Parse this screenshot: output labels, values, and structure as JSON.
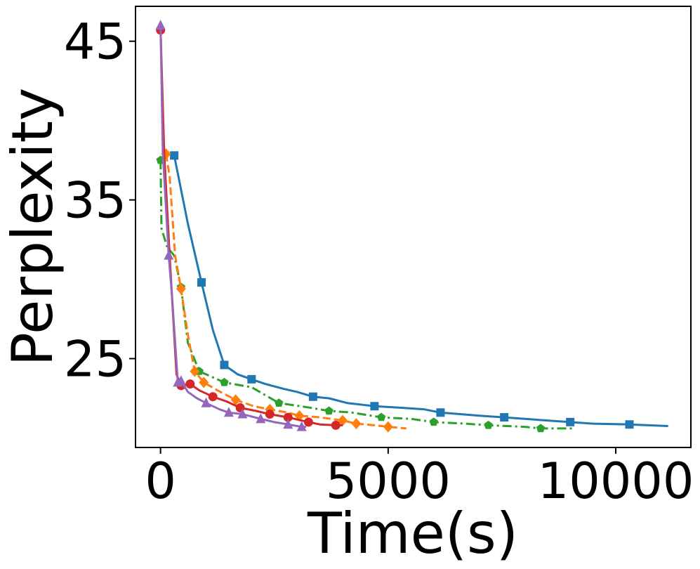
{
  "chart_data": {
    "type": "line",
    "title": "",
    "xlabel": "Time(s)",
    "ylabel": "Perplexity",
    "xlim": [
      -550,
      11650
    ],
    "ylim": [
      19.4,
      47.2
    ],
    "xticks": [
      0,
      5000,
      10000
    ],
    "xtick_labels": [
      "0",
      "5000",
      "10000"
    ],
    "yticks": [
      25,
      35,
      45
    ],
    "ytick_labels": [
      "25",
      "35",
      "45"
    ],
    "grid": false,
    "legend": "none",
    "series": [
      {
        "color": "#1f77b4",
        "dash": "solid",
        "marker": "square",
        "x": [
          300,
          600,
          900,
          1150,
          1400,
          1700,
          2000,
          2300,
          2700,
          3000,
          3350,
          3700,
          4100,
          4700,
          5300,
          5800,
          6150,
          6600,
          7000,
          7550,
          8000,
          8500,
          9000,
          9500,
          10300,
          11150
        ],
        "y": [
          37.8,
          33.5,
          29.8,
          26.8,
          24.6,
          24.0,
          23.7,
          23.4,
          23.1,
          22.9,
          22.6,
          22.5,
          22.2,
          22.0,
          21.9,
          21.8,
          21.6,
          21.5,
          21.4,
          21.3,
          21.2,
          21.1,
          21.0,
          20.9,
          20.85,
          20.75
        ],
        "marker_indices": [
          0,
          2,
          4,
          6,
          10,
          13,
          16,
          19,
          22,
          24
        ]
      },
      {
        "color": "#2ca02c",
        "dash": "dashdot",
        "marker": "pentagon",
        "x": [
          0,
          20,
          150,
          300,
          450,
          600,
          850,
          1400,
          2000,
          2600,
          3300,
          3700,
          4200,
          4850,
          5500,
          6000,
          6700,
          7200,
          8000,
          8350,
          9050
        ],
        "y": [
          37.5,
          33.2,
          32.0,
          31.5,
          29.5,
          26.0,
          24.2,
          23.5,
          23.2,
          22.2,
          21.9,
          21.7,
          21.6,
          21.3,
          21.2,
          21.0,
          20.9,
          20.8,
          20.7,
          20.6,
          20.6
        ],
        "marker_indices": [
          0,
          4,
          6,
          7,
          9,
          11,
          13,
          15,
          17,
          19
        ]
      },
      {
        "color": "#ff7f0e",
        "dash": "dashed",
        "marker": "diamond",
        "x": [
          120,
          200,
          320,
          450,
          600,
          750,
          950,
          1250,
          1650,
          2050,
          2400,
          2800,
          3050,
          3500,
          4000,
          4300,
          4700,
          5000,
          5400
        ],
        "y": [
          37.9,
          36.5,
          31.5,
          29.4,
          26.5,
          24.2,
          23.5,
          23.0,
          22.4,
          22.0,
          21.8,
          21.6,
          21.4,
          21.3,
          21.1,
          20.9,
          20.8,
          20.7,
          20.6
        ],
        "marker_indices": [
          0,
          3,
          5,
          6,
          8,
          10,
          12,
          14,
          15,
          17
        ]
      },
      {
        "color": "#d62728",
        "dash": "solid",
        "marker": "circle",
        "x": [
          0,
          80,
          200,
          350,
          450,
          650,
          850,
          1150,
          1450,
          1750,
          2100,
          2400,
          2800,
          3250,
          3500,
          3850,
          4000
        ],
        "y": [
          45.7,
          38.0,
          31.5,
          24.0,
          23.3,
          23.4,
          23.0,
          22.6,
          22.3,
          21.9,
          21.7,
          21.5,
          21.3,
          21.0,
          20.85,
          20.8,
          20.8
        ],
        "marker_indices": [
          0,
          4,
          5,
          7,
          9,
          11,
          12,
          13,
          15
        ]
      },
      {
        "color": "#9467bd",
        "dash": "solid",
        "marker": "triangle",
        "x": [
          0,
          50,
          180,
          250,
          380,
          450,
          600,
          800,
          1000,
          1300,
          1500,
          1800,
          2200,
          2500,
          2800,
          3100,
          3200
        ],
        "y": [
          46.0,
          38.0,
          31.5,
          29.0,
          23.5,
          23.6,
          22.9,
          22.5,
          22.2,
          21.8,
          21.6,
          21.5,
          21.2,
          21.0,
          20.85,
          20.7,
          20.7
        ],
        "marker_indices": [
          0,
          2,
          4,
          5,
          8,
          10,
          11,
          12,
          14,
          15
        ]
      }
    ]
  }
}
